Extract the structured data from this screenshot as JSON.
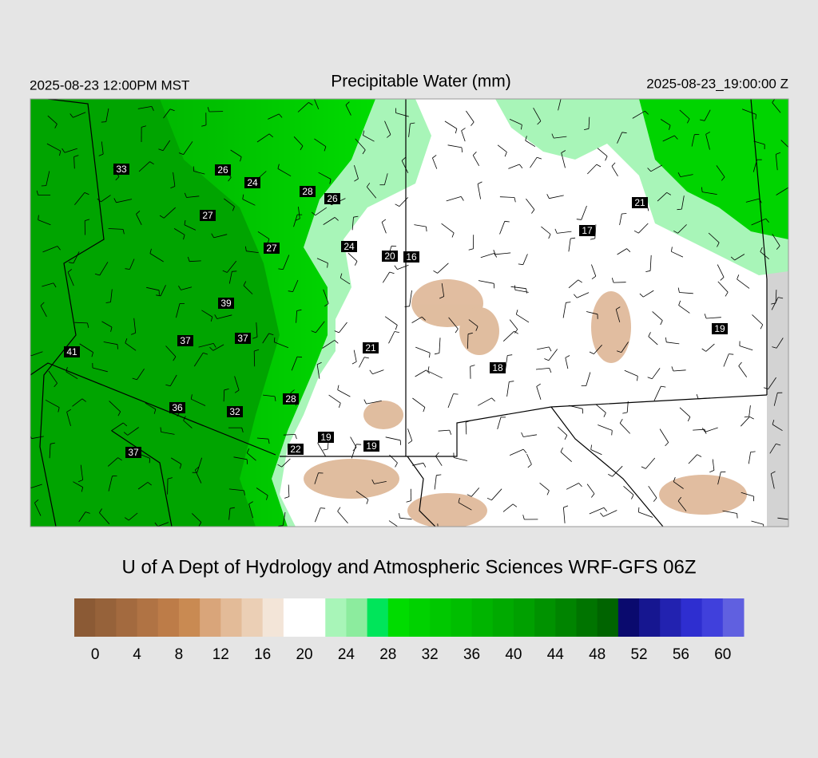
{
  "header": {
    "left": "2025-08-23 12:00PM MST",
    "title": "Precipitable Water (mm)",
    "right": "2025-08-23_19:00:00 Z"
  },
  "stations": [
    33,
    26,
    24,
    28,
    26,
    27,
    27,
    24,
    20,
    16,
    39,
    37,
    37,
    41,
    21,
    18,
    28,
    36,
    32,
    19,
    22,
    19,
    37,
    21,
    17,
    19
  ],
  "credit": "U of A Dept of Hydrology and Atmospheric Sciences WRF-GFS 06Z",
  "colorbar": {
    "lim": [
      -2,
      62
    ],
    "ticks": [
      0,
      4,
      8,
      12,
      16,
      20,
      24,
      28,
      32,
      36,
      40,
      44,
      48,
      52,
      56,
      60
    ],
    "colors": [
      "#8b5a35",
      "#96623a",
      "#a36a3f",
      "#b07344",
      "#bd7c48",
      "#c98a52",
      "#d9a57a",
      "#e3bb98",
      "#ebcfb5",
      "#f3e5d8",
      "#ffffff",
      "#ffffff",
      "#a8f5b8",
      "#8cec9e",
      "#00e55a",
      "#00dc00",
      "#00d200",
      "#00c800",
      "#00be00",
      "#00b400",
      "#00aa00",
      "#00a000",
      "#009200",
      "#008400",
      "#007400",
      "#006400",
      "#0a0a6e",
      "#161690",
      "#2222b0",
      "#2e2ed0",
      "#4040dc",
      "#6060e0"
    ]
  }
}
